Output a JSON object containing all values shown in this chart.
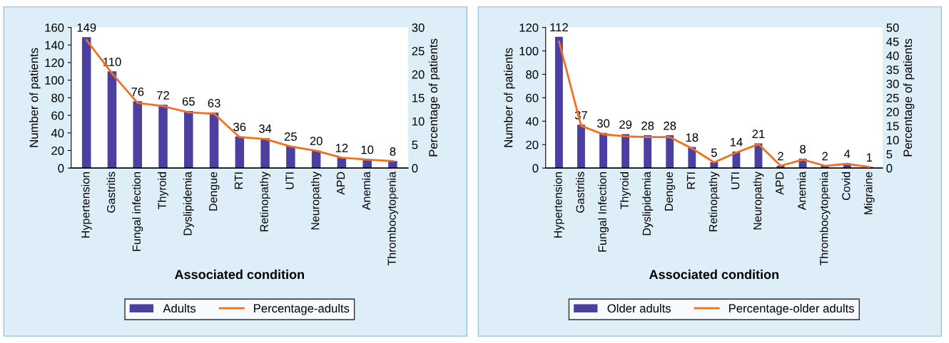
{
  "chart_data": [
    {
      "type": "bar",
      "categories": [
        "Hypertension",
        "Gastritis",
        "Fungal infection",
        "Thyroid",
        "Dyslipidemia",
        "Dengue",
        "RTI",
        "Retinopathy",
        "UTI",
        "Neuropathy",
        "APD",
        "Anemia",
        "Thrombocytopenia"
      ],
      "xlabel": "Associated condition",
      "ylabel": "Number of patients",
      "y2label": "Percentage of patients",
      "ylim": [
        0,
        160
      ],
      "yticks": [
        0,
        20,
        40,
        60,
        80,
        100,
        120,
        140,
        160
      ],
      "y2lim": [
        0,
        30
      ],
      "y2ticks": [
        0,
        5,
        10,
        15,
        20,
        25,
        30
      ],
      "legend": "bottom",
      "grid": false,
      "series": [
        {
          "name": "Adults",
          "color": "#4b3fa0",
          "values": [
            149,
            110,
            76,
            72,
            65,
            63,
            36,
            34,
            25,
            20,
            12,
            10,
            8
          ],
          "value_labels": [
            "149",
            "110",
            "76",
            "72",
            "65",
            "63",
            "36",
            "34",
            "25",
            "20",
            "12",
            "10",
            "8"
          ]
        },
        {
          "name": "Percentage-adults",
          "type": "line",
          "axis": "y2",
          "color": "#f07020",
          "values": [
            27.3,
            20.2,
            13.9,
            13.2,
            11.9,
            11.6,
            6.6,
            6.2,
            4.6,
            3.7,
            2.2,
            1.8,
            1.5
          ]
        }
      ]
    },
    {
      "type": "bar",
      "categories": [
        "Hypertension",
        "Gastritis",
        "Fungal Infection",
        "Thyroid",
        "Dyslipidemia",
        "Dengue",
        "RTI",
        "Retinopathy",
        "UTI",
        "Neuropathy",
        "APD",
        "Anemia",
        "Thrombocytopenia",
        "Covid",
        "Migraine"
      ],
      "xlabel": "Associated condition",
      "ylabel": "Number of patients",
      "y2label": "Percentage of patients",
      "ylim": [
        0,
        120
      ],
      "yticks": [
        0,
        20,
        40,
        60,
        80,
        100,
        120
      ],
      "y2lim": [
        0,
        50
      ],
      "y2ticks": [
        0,
        5,
        10,
        15,
        20,
        25,
        30,
        35,
        40,
        45,
        50
      ],
      "legend": "bottom",
      "grid": false,
      "series": [
        {
          "name": "Older adults",
          "color": "#4b3fa0",
          "values": [
            112,
            37,
            30,
            29,
            28,
            28,
            18,
            5,
            14,
            21,
            2,
            8,
            2,
            4,
            1
          ],
          "value_labels": [
            "112",
            "37",
            "30",
            "29",
            "28",
            "28",
            "18",
            "5",
            "14",
            "21",
            "2",
            "8",
            "2",
            "4",
            "1"
          ]
        },
        {
          "name": "Percentage-older adults",
          "type": "line",
          "axis": "y2",
          "color": "#f07020",
          "values": [
            45,
            15,
            12,
            11.3,
            11,
            11,
            7,
            2,
            5.5,
            8.5,
            0.8,
            3,
            0.8,
            1.5,
            0.4
          ]
        }
      ]
    }
  ]
}
